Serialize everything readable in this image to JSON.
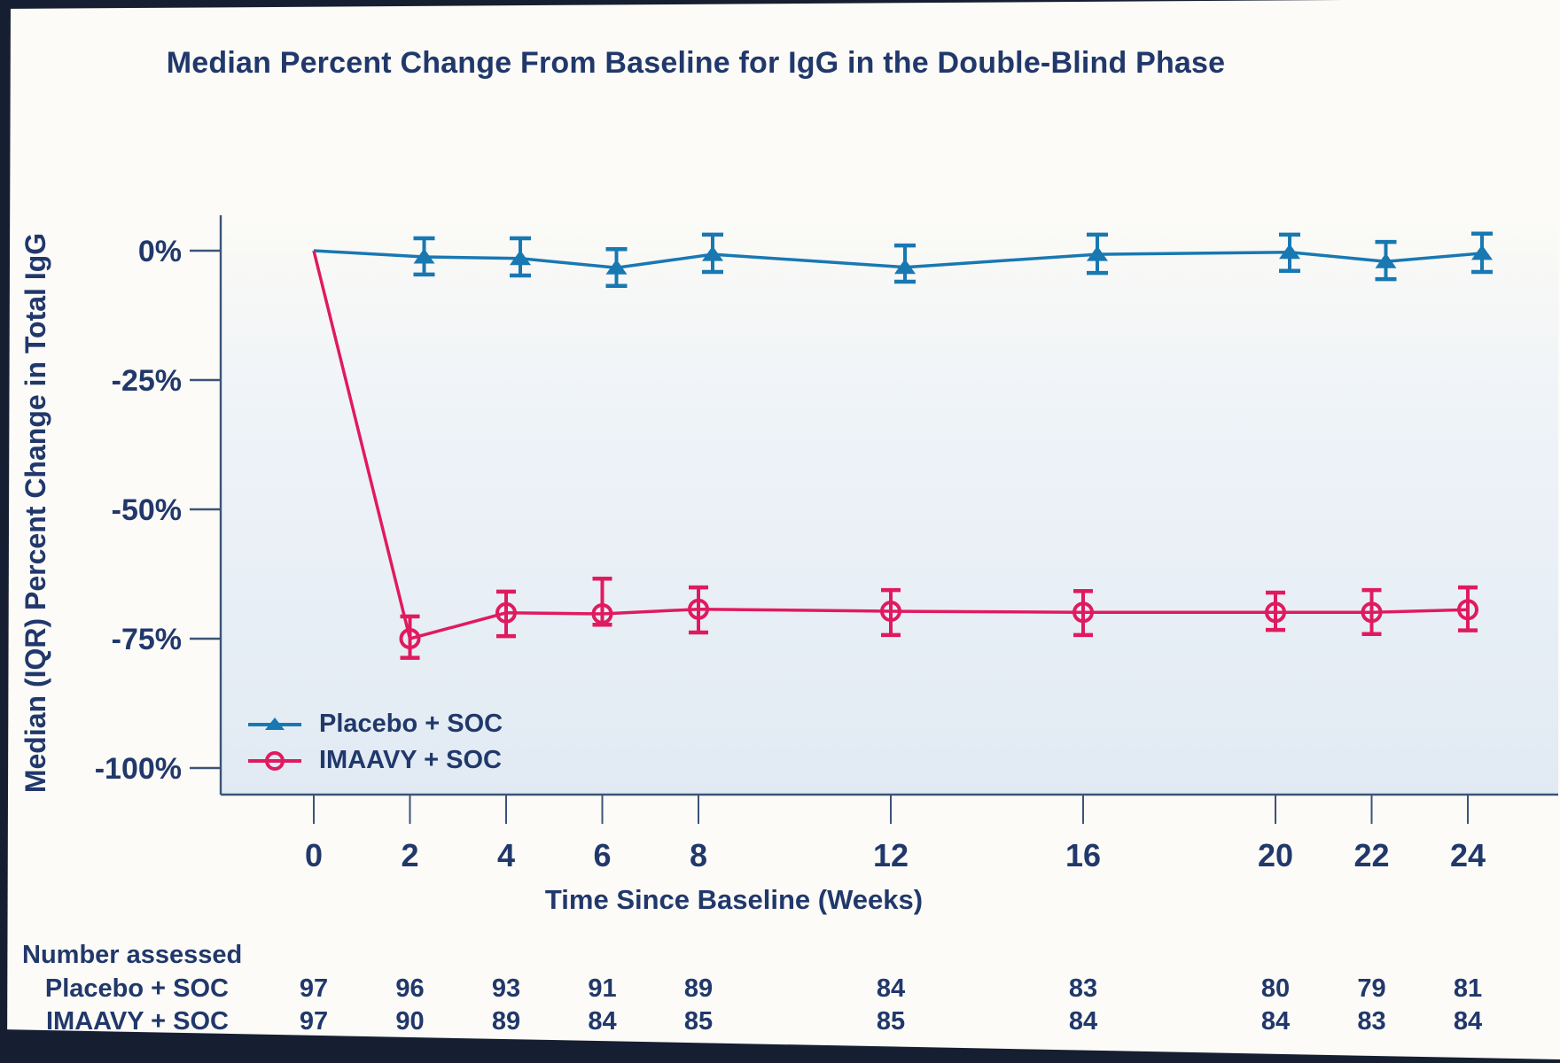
{
  "page": {
    "background_color": "#fcfbf7",
    "edge_color": "#161f31",
    "text_color": "#21386b"
  },
  "chart_data": {
    "type": "line",
    "title": "Median Percent Change From Baseline for IgG in the Double-Blind Phase",
    "xlabel": "Time Since Baseline (Weeks)",
    "ylabel": "Median (IQR) Percent Change in Total IgG",
    "x": [
      0,
      2,
      4,
      6,
      8,
      12,
      16,
      20,
      22,
      24
    ],
    "x_tick_labels": [
      "0",
      "2",
      "4",
      "6",
      "8",
      "12",
      "16",
      "20",
      "22",
      "24"
    ],
    "y_tick_labels": [
      "0%",
      "-25%",
      "-50%",
      "-75%",
      "-100%"
    ],
    "y_tick_values": [
      0,
      -25,
      -50,
      -75,
      -100
    ],
    "ylim": [
      -105,
      6.5
    ],
    "grid": false,
    "legend_position": "inside-bottom-left",
    "axis_color": "#3b5478",
    "plot_gradient": [
      "#fbfaf6",
      "#eef3f8",
      "#e1eaf3"
    ],
    "series": [
      {
        "name": "Placebo + SOC",
        "color": "#1878b2",
        "marker": "filled-triangle",
        "values": [
          0,
          -1.2,
          -1.5,
          -3.3,
          -0.7,
          -3.2,
          -0.7,
          -0.3,
          -2.1,
          -0.5
        ],
        "err_hi": [
          null,
          2.4,
          2.4,
          0.3,
          3.1,
          1.0,
          3.1,
          3.1,
          1.7,
          3.3
        ],
        "err_lo": [
          null,
          -4.6,
          -4.8,
          -6.8,
          -4.1,
          -6.0,
          -4.3,
          -3.9,
          -5.5,
          -4.1
        ]
      },
      {
        "name": "IMAAVY + SOC",
        "color": "#e01a5e",
        "marker": "open-circle",
        "values": [
          0,
          -75.0,
          -70.0,
          -70.2,
          -69.3,
          -69.7,
          -69.9,
          -69.9,
          -69.9,
          -69.4
        ],
        "err_hi": [
          null,
          -70.7,
          -65.9,
          -63.4,
          -65.1,
          -65.6,
          -65.8,
          -66.1,
          -65.6,
          -65.1
        ],
        "err_lo": [
          null,
          -78.7,
          -74.5,
          -72.3,
          -73.8,
          -74.3,
          -74.3,
          -73.3,
          -74.1,
          -73.4
        ]
      }
    ]
  },
  "number_assessed": {
    "heading": "Number assessed",
    "rows": [
      {
        "label": "Placebo + SOC",
        "counts": [
          97,
          96,
          93,
          91,
          89,
          84,
          83,
          80,
          79,
          81
        ]
      },
      {
        "label": "IMAAVY + SOC",
        "counts": [
          97,
          90,
          89,
          84,
          85,
          85,
          84,
          84,
          83,
          84
        ]
      }
    ]
  }
}
